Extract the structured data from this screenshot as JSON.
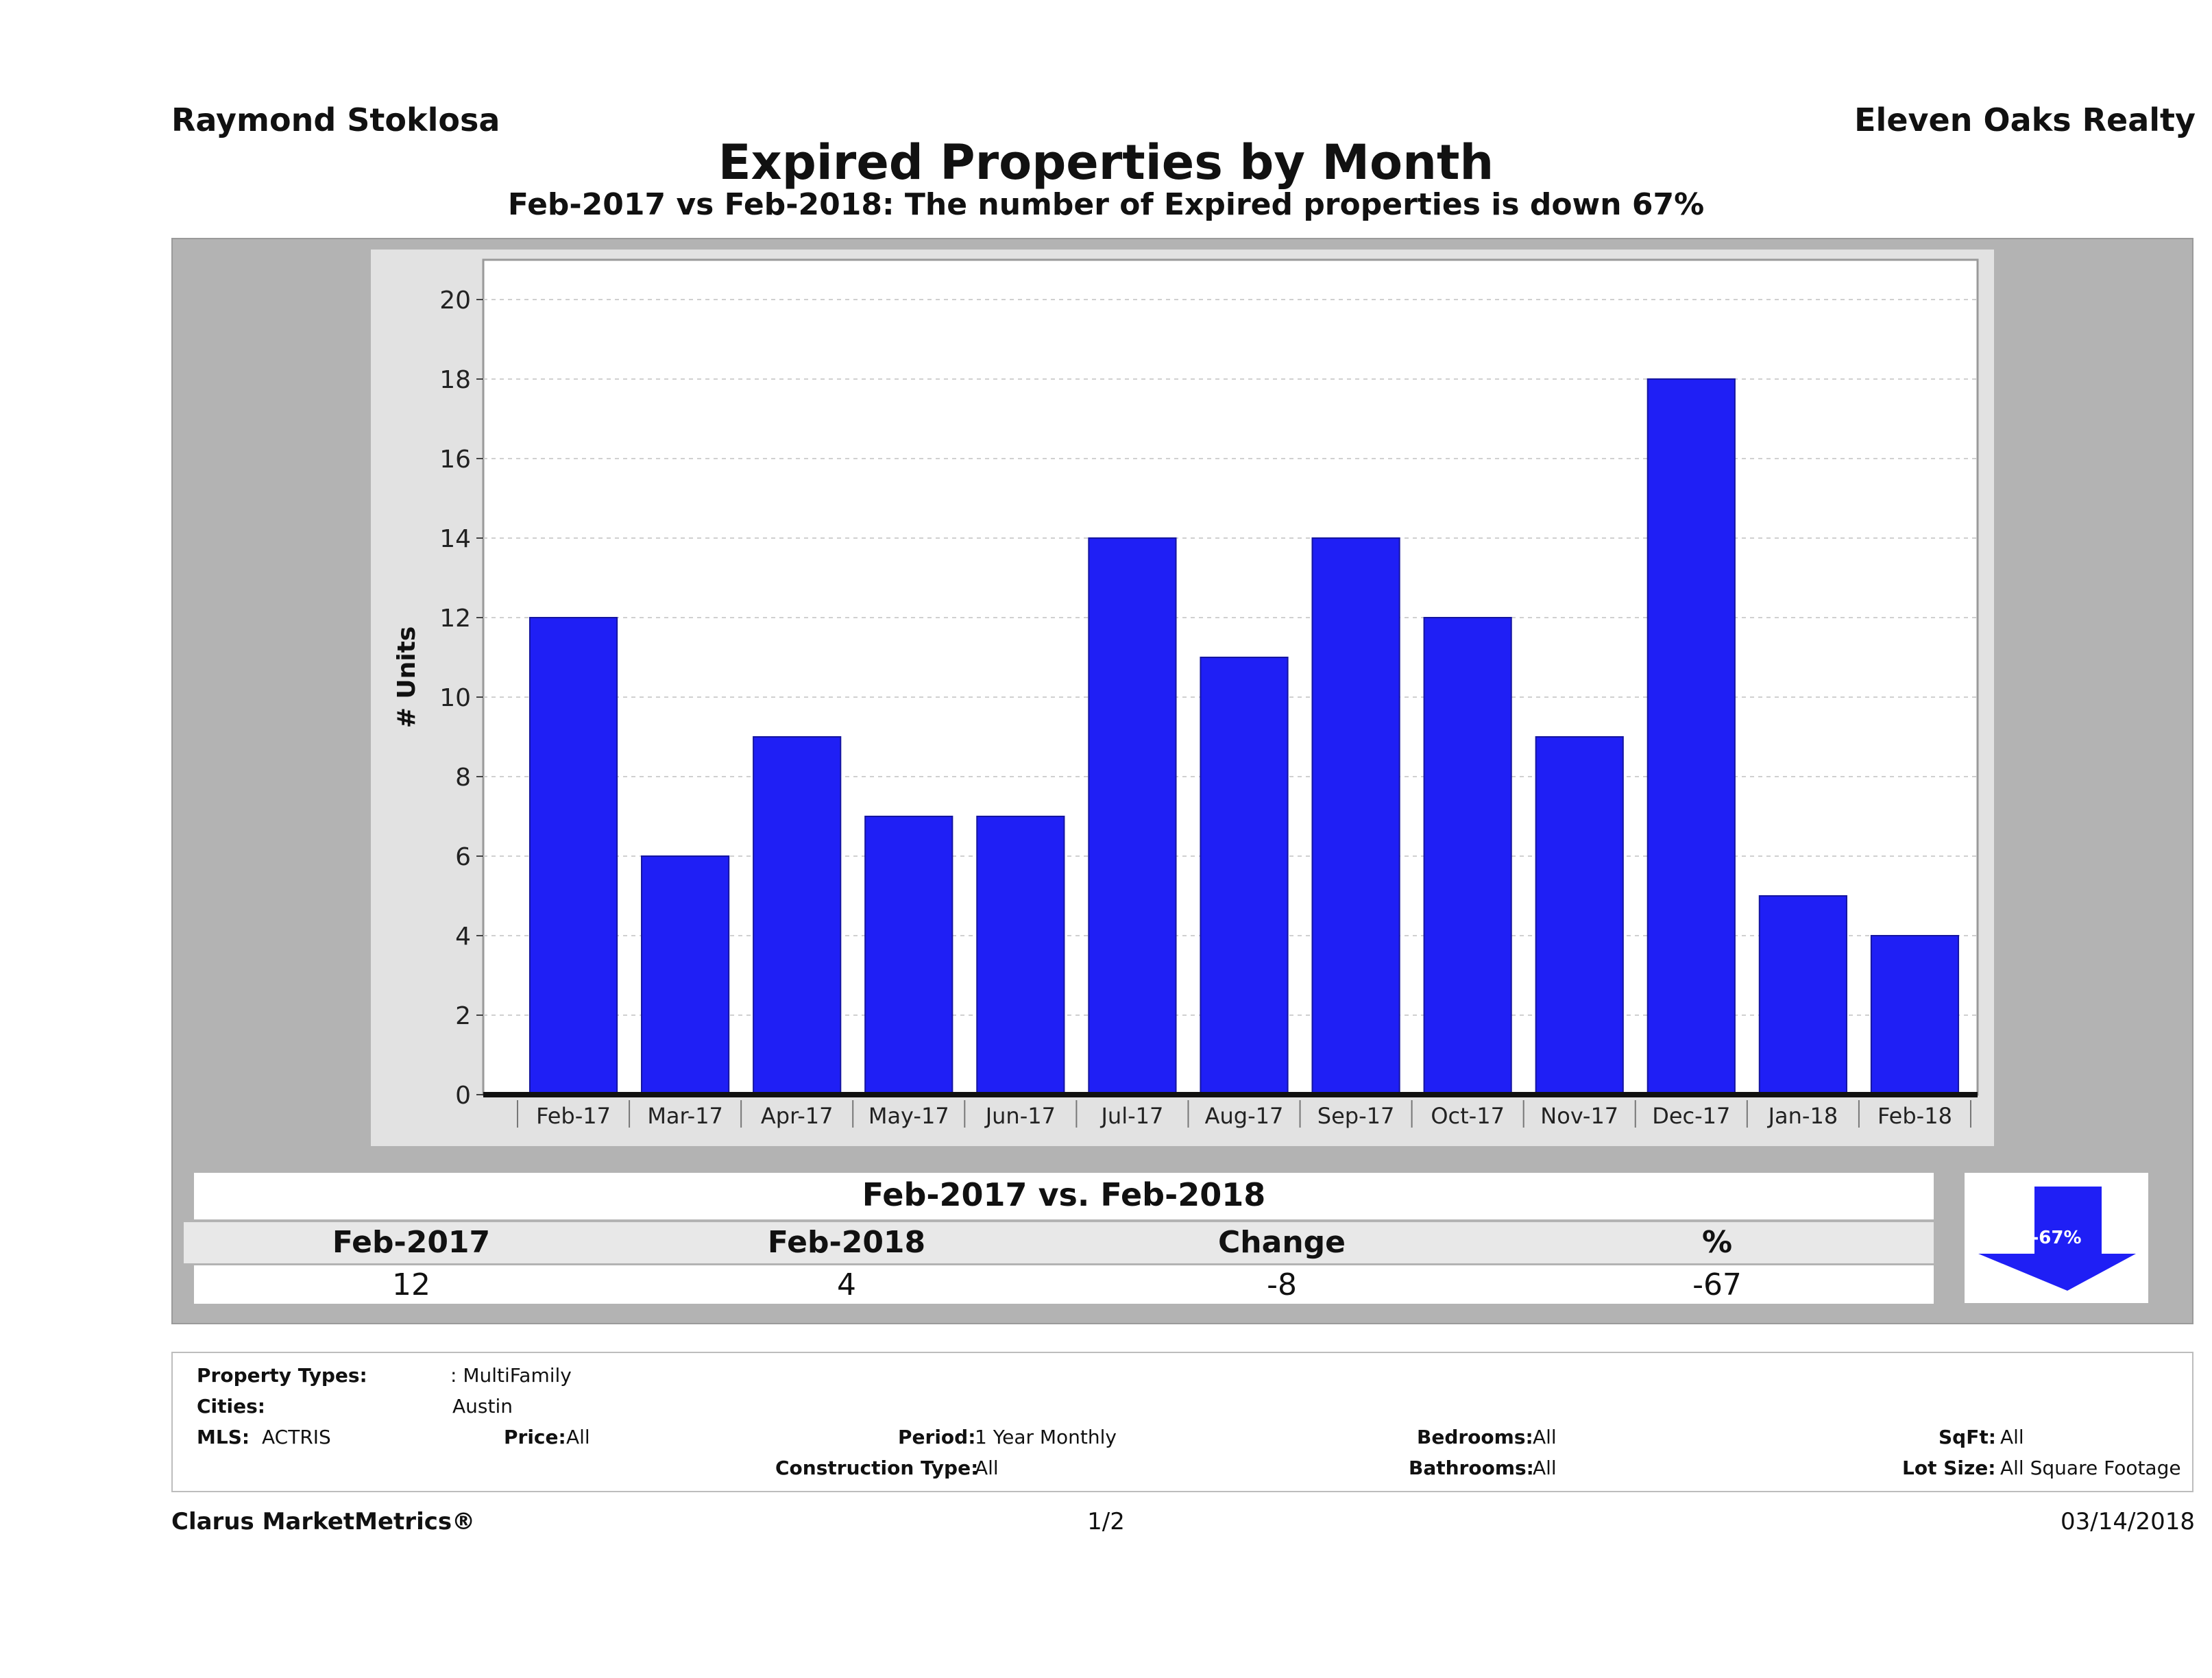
{
  "header": {
    "agent": "Raymond Stoklosa",
    "broker": "Eleven Oaks Realty",
    "title": "Expired Properties by Month",
    "subtitle": "Feb-2017 vs Feb-2018: The number of Expired  properties is down 67%"
  },
  "chart_data": {
    "type": "bar",
    "categories": [
      "Feb-17",
      "Mar-17",
      "Apr-17",
      "May-17",
      "Jun-17",
      "Jul-17",
      "Aug-17",
      "Sep-17",
      "Oct-17",
      "Nov-17",
      "Dec-17",
      "Jan-18",
      "Feb-18"
    ],
    "values": [
      12,
      6,
      9,
      7,
      7,
      14,
      11,
      14,
      12,
      9,
      18,
      5,
      4
    ],
    "ylabel": "# Units",
    "xlabel": "",
    "ylim": [
      0,
      21
    ],
    "yticks": [
      0,
      2,
      4,
      6,
      8,
      10,
      12,
      14,
      16,
      18,
      20
    ],
    "grid": true,
    "bar_color": "#1f1ff5"
  },
  "comparison": {
    "title": "Feb-2017 vs. Feb-2018",
    "headers": [
      "Feb-2017",
      "Feb-2018",
      "Change",
      "%"
    ],
    "values": [
      "12",
      "4",
      "-8",
      "-67"
    ],
    "badge": "-67%",
    "badge_color": "#1f1ff5"
  },
  "criteria": {
    "property_types_label": "Property Types:",
    "property_types_value": ": MultiFamily",
    "cities_label": "Cities:",
    "cities_value": "Austin",
    "mls_label": "MLS:",
    "mls_value": "ACTRIS",
    "price_label": "Price:",
    "price_value": "All",
    "period_label": "Period:",
    "period_value": "1 Year Monthly",
    "construction_label": "Construction Type:",
    "construction_value": "All",
    "bedrooms_label": "Bedrooms:",
    "bedrooms_value": "All",
    "bathrooms_label": "Bathrooms:",
    "bathrooms_value": "All",
    "sqft_label": "SqFt:",
    "sqft_value": "All",
    "lotsize_label": "Lot Size:",
    "lotsize_value": "All Square Footage"
  },
  "footer": {
    "brand": "Clarus MarketMetrics®",
    "page": "1/2",
    "date": "03/14/2018"
  }
}
